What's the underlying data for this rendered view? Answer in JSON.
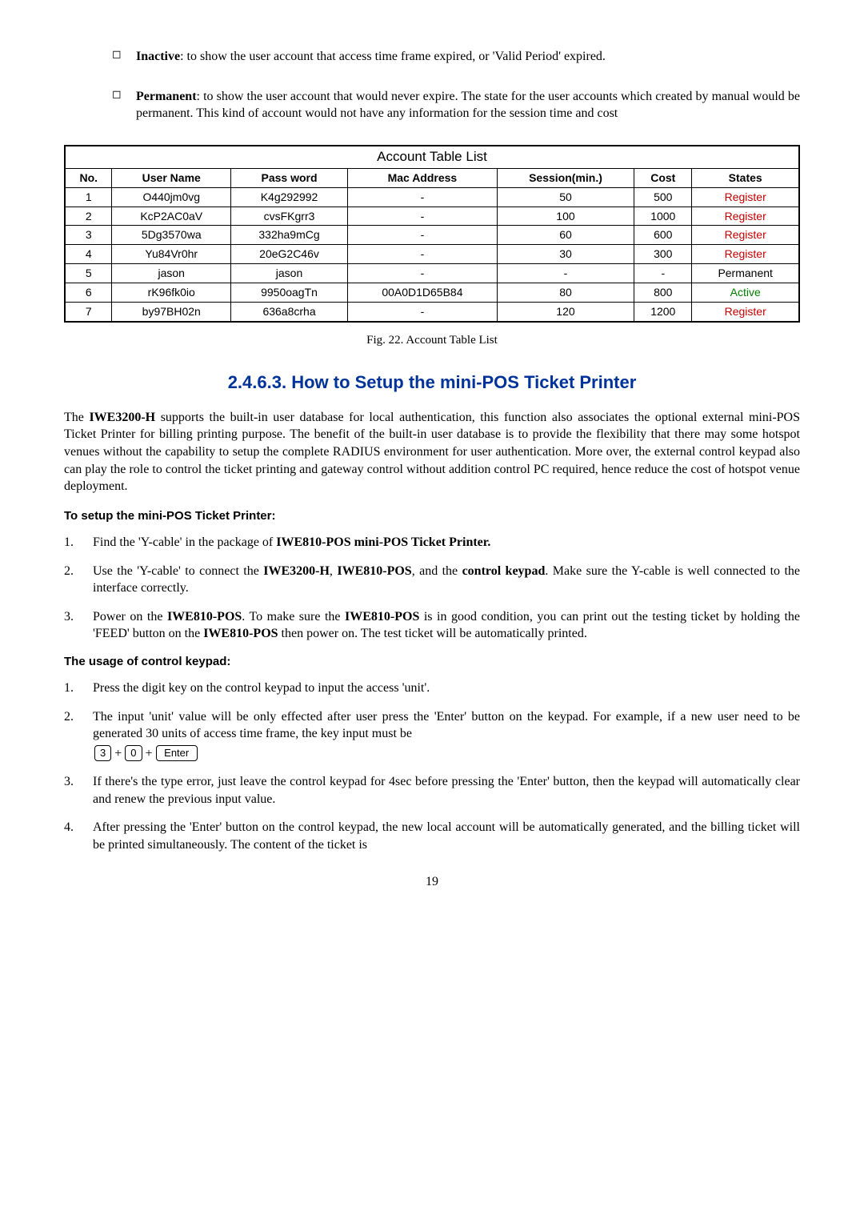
{
  "bullets": [
    {
      "label": "Inactive",
      "text": ": to show the user account that access time frame expired, or 'Valid Period' expired."
    },
    {
      "label": "Permanent",
      "text": ": to show the user account that would never expire. The state for the user accounts which created by manual would be permanent. This kind of account would not have any information for the session time and cost"
    }
  ],
  "table": {
    "title": "Account Table List",
    "headers": [
      "No.",
      "User Name",
      "Pass word",
      "Mac Address",
      "Session(min.)",
      "Cost",
      "States"
    ],
    "rows": [
      {
        "no": "1",
        "user": "O440jm0vg",
        "pass": "K4g292992",
        "mac": "-",
        "session": "50",
        "cost": "500",
        "state": "Register",
        "state_class": "red"
      },
      {
        "no": "2",
        "user": "KcP2AC0aV",
        "pass": "cvsFKgrr3",
        "mac": "-",
        "session": "100",
        "cost": "1000",
        "state": "Register",
        "state_class": "red"
      },
      {
        "no": "3",
        "user": "5Dg3570wa",
        "pass": "332ha9mCg",
        "mac": "-",
        "session": "60",
        "cost": "600",
        "state": "Register",
        "state_class": "red"
      },
      {
        "no": "4",
        "user": "Yu84Vr0hr",
        "pass": "20eG2C46v",
        "mac": "-",
        "session": "30",
        "cost": "300",
        "state": "Register",
        "state_class": "red"
      },
      {
        "no": "5",
        "user": "jason",
        "pass": "jason",
        "mac": "-",
        "session": "-",
        "cost": "-",
        "state": "Permanent",
        "state_class": ""
      },
      {
        "no": "6",
        "user": "rK96fk0io",
        "pass": "9950oagTn",
        "mac": "00A0D1D65B84",
        "session": "80",
        "cost": "800",
        "state": "Active",
        "state_class": "green"
      },
      {
        "no": "7",
        "user": "by97BH02n",
        "pass": "636a8crha",
        "mac": "-",
        "session": "120",
        "cost": "1200",
        "state": "Register",
        "state_class": "red"
      }
    ]
  },
  "fig_caption": "Fig. 22. Account Table List",
  "section_heading": "2.4.6.3. How to Setup the mini-POS Ticket Printer",
  "para1_a": "The ",
  "para1_b": "IWE3200-H",
  "para1_c": " supports the built-in user database for local authentication, this function also associates the optional external mini-POS Ticket Printer for billing printing purpose. The benefit of the built-in user database is to provide the flexibility that there may some hotspot venues without the capability to setup the complete RADIUS environment for user authentication. More over, the external control keypad also can play the role to control the ticket printing and gateway control without addition control PC required, hence reduce the cost of hotspot venue deployment.",
  "sub1": "To setup the mini-POS Ticket Printer:",
  "setup_list": [
    {
      "n": "1.",
      "html": "Find the 'Y-cable' in the package of <span class=\"bold\">IWE810-POS mini-POS Ticket Printer.</span>"
    },
    {
      "n": "2.",
      "html": "Use the 'Y-cable' to connect the <span class=\"bold\">IWE3200-H</span>, <span class=\"bold\">IWE810-POS</span>, and the <span class=\"bold\">control keypad</span>. Make sure the Y-cable is well connected to the interface correctly."
    },
    {
      "n": "3.",
      "html": "Power on the <span class=\"bold\">IWE810-POS</span>. To make sure the <span class=\"bold\">IWE810-POS</span> is in good condition, you can print out the testing ticket by holding the 'FEED' button on the <span class=\"bold\">IWE810-POS</span> then power on. The test ticket will be automatically printed."
    }
  ],
  "sub2": "The usage of control keypad:",
  "usage_list": [
    {
      "n": "1.",
      "html": "Press the digit key on the control keypad to input the access 'unit'."
    },
    {
      "n": "2.",
      "html": "The input 'unit' value will be only effected after user press the 'Enter' button on the keypad. For example, if a new user need to be generated 30 units of access time frame, the key input must be<div class=\"keypad-line\"><span class=\"keycap\">3</span><span class=\"plus\">+</span><span class=\"keycap\">0</span><span class=\"plus\">+</span><span class=\"keycap\">&nbsp;Enter&nbsp;</span></div>"
    },
    {
      "n": "3.",
      "html": "If there's the type error, just leave the control keypad for 4sec before pressing the 'Enter' button, then the keypad will automatically clear and renew the previous input value."
    },
    {
      "n": "4.",
      "html": "After pressing the 'Enter' button on the control keypad, the new local account will be automatically generated, and the billing ticket will be printed simultaneously. The content of the ticket is"
    }
  ],
  "page_number": "19"
}
